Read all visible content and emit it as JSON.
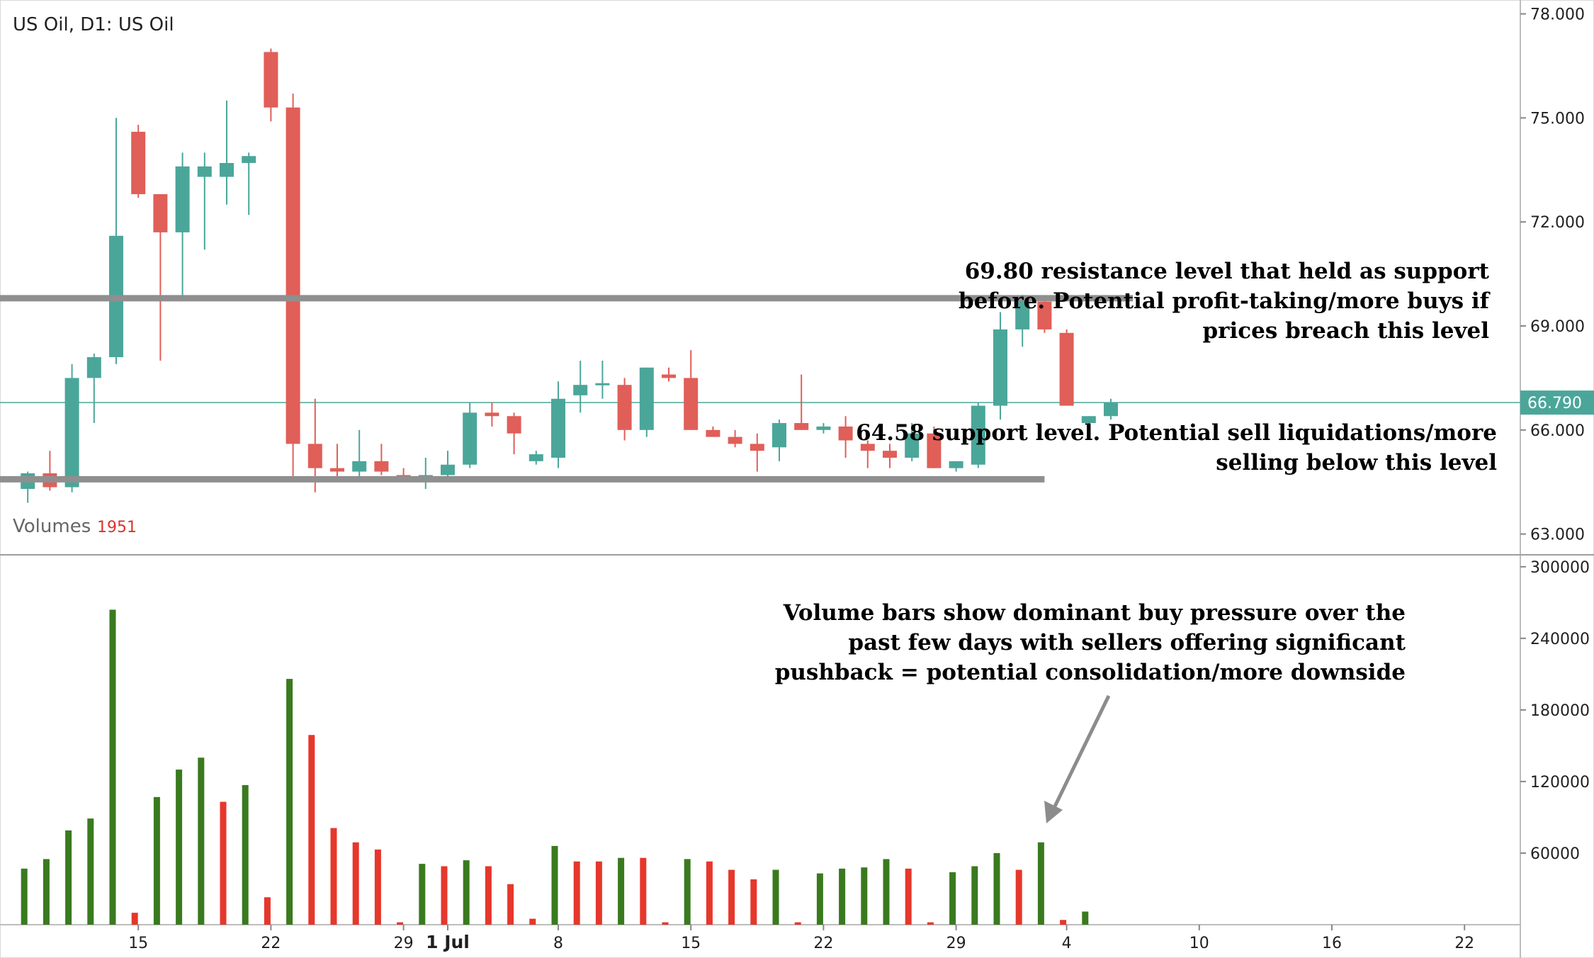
{
  "chart_data": [
    {
      "type": "candlestick",
      "title": "US Oil, D1: US Oil",
      "ylim": [
        62.4,
        78.4
      ],
      "yticks": [
        "78.000",
        "75.000",
        "72.000",
        "69.000",
        "66.000",
        "63.000"
      ],
      "ytick_values": [
        78,
        75,
        72,
        69,
        66,
        63
      ],
      "current_price": {
        "label": "66.790",
        "value": 66.79,
        "color": "#4ba69a"
      },
      "colors": {
        "up": "#4ba69a",
        "down": "#e05f58"
      },
      "x_labels": [
        {
          "text": "15",
          "index": 6
        },
        {
          "text": "22",
          "index": 12
        },
        {
          "text": "29",
          "index": 18
        },
        {
          "text": "1 Jul",
          "index": 20,
          "bold": true
        },
        {
          "text": "8",
          "index": 25
        },
        {
          "text": "15",
          "index": 31
        },
        {
          "text": "22",
          "index": 37
        },
        {
          "text": "29",
          "index": 43
        },
        {
          "text": "4",
          "index": 48
        },
        {
          "text": "10",
          "index": 54
        },
        {
          "text": "16",
          "index": 60
        },
        {
          "text": "22",
          "index": 66
        }
      ],
      "x_slot_count": 68,
      "ohlc": [
        {
          "o": 64.6,
          "h": 64.65,
          "l": 64.5,
          "c": 64.5
        },
        {
          "o": 64.3,
          "h": 64.8,
          "l": 63.9,
          "c": 64.75
        },
        {
          "o": 64.75,
          "h": 65.4,
          "l": 64.25,
          "c": 64.35
        },
        {
          "o": 64.35,
          "h": 67.9,
          "l": 64.2,
          "c": 67.5
        },
        {
          "o": 67.5,
          "h": 68.2,
          "l": 66.2,
          "c": 68.1
        },
        {
          "o": 68.1,
          "h": 75.0,
          "l": 67.9,
          "c": 71.6
        },
        {
          "o": 74.6,
          "h": 74.8,
          "l": 72.7,
          "c": 72.8
        },
        {
          "o": 72.8,
          "h": 72.8,
          "l": 68.0,
          "c": 71.7
        },
        {
          "o": 71.7,
          "h": 74.0,
          "l": 69.8,
          "c": 73.6
        },
        {
          "o": 73.3,
          "h": 74.0,
          "l": 71.2,
          "c": 73.6
        },
        {
          "o": 73.3,
          "h": 75.5,
          "l": 72.5,
          "c": 73.7
        },
        {
          "o": 73.7,
          "h": 74.0,
          "l": 72.2,
          "c": 73.9
        },
        {
          "o": 76.9,
          "h": 77.0,
          "l": 74.9,
          "c": 75.3
        },
        {
          "o": 75.3,
          "h": 75.7,
          "l": 64.5,
          "c": 65.6
        },
        {
          "o": 65.6,
          "h": 66.9,
          "l": 64.2,
          "c": 64.9
        },
        {
          "o": 64.9,
          "h": 65.6,
          "l": 64.5,
          "c": 64.8
        },
        {
          "o": 64.8,
          "h": 66.0,
          "l": 64.5,
          "c": 65.1
        },
        {
          "o": 65.1,
          "h": 65.6,
          "l": 64.7,
          "c": 64.8
        },
        {
          "o": 64.7,
          "h": 64.9,
          "l": 64.5,
          "c": 64.6
        },
        {
          "o": 64.6,
          "h": 65.2,
          "l": 64.3,
          "c": 64.7
        },
        {
          "o": 64.7,
          "h": 65.4,
          "l": 64.5,
          "c": 65.0
        },
        {
          "o": 65.0,
          "h": 66.8,
          "l": 64.9,
          "c": 66.5
        },
        {
          "o": 66.5,
          "h": 66.8,
          "l": 66.1,
          "c": 66.4
        },
        {
          "o": 66.4,
          "h": 66.5,
          "l": 65.3,
          "c": 65.9
        },
        {
          "o": 65.1,
          "h": 65.4,
          "l": 65.0,
          "c": 65.3
        },
        {
          "o": 65.2,
          "h": 67.4,
          "l": 64.9,
          "c": 66.9
        },
        {
          "o": 67.0,
          "h": 68.0,
          "l": 66.5,
          "c": 67.3
        },
        {
          "o": 67.3,
          "h": 68.0,
          "l": 66.9,
          "c": 67.35
        },
        {
          "o": 67.3,
          "h": 67.5,
          "l": 65.7,
          "c": 66.0
        },
        {
          "o": 66.0,
          "h": 67.8,
          "l": 65.8,
          "c": 67.8
        },
        {
          "o": 67.6,
          "h": 67.8,
          "l": 67.4,
          "c": 67.5
        },
        {
          "o": 67.5,
          "h": 68.3,
          "l": 66.0,
          "c": 66.0
        },
        {
          "o": 66.0,
          "h": 66.1,
          "l": 65.8,
          "c": 65.8
        },
        {
          "o": 65.8,
          "h": 66.0,
          "l": 65.5,
          "c": 65.6
        },
        {
          "o": 65.6,
          "h": 65.9,
          "l": 64.8,
          "c": 65.4
        },
        {
          "o": 65.5,
          "h": 66.3,
          "l": 65.1,
          "c": 66.2
        },
        {
          "o": 66.2,
          "h": 67.6,
          "l": 66.0,
          "c": 66.0
        },
        {
          "o": 66.0,
          "h": 66.2,
          "l": 65.9,
          "c": 66.1
        },
        {
          "o": 66.1,
          "h": 66.4,
          "l": 65.2,
          "c": 65.7
        },
        {
          "o": 65.6,
          "h": 65.7,
          "l": 64.9,
          "c": 65.4
        },
        {
          "o": 65.4,
          "h": 65.6,
          "l": 64.9,
          "c": 65.2
        },
        {
          "o": 65.2,
          "h": 66.2,
          "l": 65.1,
          "c": 65.9
        },
        {
          "o": 65.9,
          "h": 66.1,
          "l": 64.9,
          "c": 64.9
        },
        {
          "o": 64.9,
          "h": 65.1,
          "l": 64.8,
          "c": 65.1
        },
        {
          "o": 65.0,
          "h": 66.8,
          "l": 64.9,
          "c": 66.7
        },
        {
          "o": 66.7,
          "h": 69.4,
          "l": 66.3,
          "c": 68.9
        },
        {
          "o": 68.9,
          "h": 69.9,
          "l": 68.4,
          "c": 69.8
        },
        {
          "o": 69.7,
          "h": 69.8,
          "l": 68.8,
          "c": 68.9
        },
        {
          "o": 68.8,
          "h": 68.9,
          "l": 66.7,
          "c": 66.7
        },
        {
          "o": 66.2,
          "h": 66.4,
          "l": 66.0,
          "c": 66.4
        },
        {
          "o": 66.4,
          "h": 66.9,
          "l": 66.3,
          "c": 66.8
        }
      ],
      "levels": [
        {
          "value": 69.8,
          "from_index": 0,
          "to_index": 51
        },
        {
          "value": 64.58,
          "from_index": 0,
          "to_index": 47
        }
      ],
      "annotations": {
        "resistance": [
          "69.80 resistance level that held as support",
          "before. Potential profit-taking/more buys if",
          "prices breach this level"
        ],
        "support": [
          "64.58 support level. Potential sell liquidations/more",
          "selling below this level"
        ]
      }
    },
    {
      "type": "bar",
      "title": "Volumes",
      "current_label": "1951",
      "ylim": [
        0,
        310000
      ],
      "yticks": [
        "300000",
        "240000",
        "180000",
        "120000",
        "60000"
      ],
      "ytick_values": [
        300000,
        240000,
        180000,
        120000,
        60000
      ],
      "colors": {
        "up": "#3a7a1f",
        "down": "#e6372c"
      },
      "values": [
        {
          "v": 47000,
          "up": true
        },
        {
          "v": 55000,
          "up": true
        },
        {
          "v": 79000,
          "up": true
        },
        {
          "v": 89000,
          "up": true
        },
        {
          "v": 264000,
          "up": true
        },
        {
          "v": 10000,
          "up": false
        },
        {
          "v": 107000,
          "up": true
        },
        {
          "v": 130000,
          "up": true
        },
        {
          "v": 140000,
          "up": true
        },
        {
          "v": 103000,
          "up": false
        },
        {
          "v": 117000,
          "up": true
        },
        {
          "v": 23000,
          "up": false
        },
        {
          "v": 206000,
          "up": true
        },
        {
          "v": 159000,
          "up": false
        },
        {
          "v": 81000,
          "up": false
        },
        {
          "v": 69000,
          "up": false
        },
        {
          "v": 63000,
          "up": false
        },
        {
          "v": 2000,
          "up": false
        },
        {
          "v": 51000,
          "up": true
        },
        {
          "v": 49000,
          "up": false
        },
        {
          "v": 54000,
          "up": true
        },
        {
          "v": 49000,
          "up": false
        },
        {
          "v": 34000,
          "up": false
        },
        {
          "v": 5000,
          "up": false
        },
        {
          "v": 66000,
          "up": true
        },
        {
          "v": 53000,
          "up": false
        },
        {
          "v": 53000,
          "up": false
        },
        {
          "v": 56000,
          "up": true
        },
        {
          "v": 56000,
          "up": false
        },
        {
          "v": 2000,
          "up": false
        },
        {
          "v": 55000,
          "up": true
        },
        {
          "v": 53000,
          "up": false
        },
        {
          "v": 46000,
          "up": false
        },
        {
          "v": 38000,
          "up": false
        },
        {
          "v": 46000,
          "up": true
        },
        {
          "v": 2000,
          "up": false
        },
        {
          "v": 43000,
          "up": true
        },
        {
          "v": 47000,
          "up": true
        },
        {
          "v": 48000,
          "up": true
        },
        {
          "v": 55000,
          "up": true
        },
        {
          "v": 47000,
          "up": false
        },
        {
          "v": 2000,
          "up": false
        },
        {
          "v": 44000,
          "up": true
        },
        {
          "v": 49000,
          "up": true
        },
        {
          "v": 60000,
          "up": true
        },
        {
          "v": 46000,
          "up": false
        },
        {
          "v": 69000,
          "up": true
        },
        {
          "v": 4000,
          "up": false
        },
        {
          "v": 11000,
          "up": true
        }
      ],
      "annotation": [
        "Volume bars show dominant buy pressure over the",
        "past few days with sellers offering significant",
        "pushback = potential consolidation/more downside"
      ],
      "arrow_target_index": 46
    }
  ]
}
